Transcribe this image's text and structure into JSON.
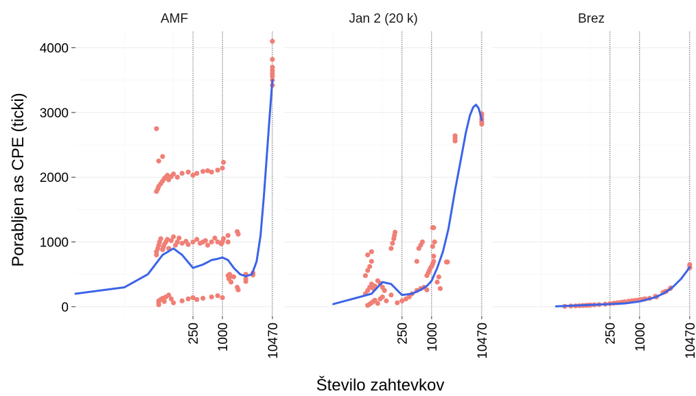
{
  "chart_data": {
    "type": "scatter",
    "xlabel": "Število zahtevkov",
    "ylabel": "Porabljen  as CPE (ticki)",
    "x_scale": "log",
    "x_tick_labels": [
      "250",
      "1000",
      "10470"
    ],
    "x_tick_values": [
      250,
      1000,
      10470
    ],
    "reference_lines_x": [
      250,
      1000,
      10470
    ],
    "ylim": [
      -150,
      4250
    ],
    "y_ticks": [
      0,
      1000,
      2000,
      3000,
      4000
    ],
    "point_color": "#f07f76",
    "line_color": "#3b63e8",
    "grid": true,
    "facets": [
      {
        "label": "AMF",
        "points": [
          [
            50,
            30
          ],
          [
            50,
            60
          ],
          [
            50,
            90
          ],
          [
            55,
            110
          ],
          [
            60,
            130
          ],
          [
            65,
            80
          ],
          [
            70,
            150
          ],
          [
            80,
            180
          ],
          [
            90,
            120
          ],
          [
            100,
            60
          ],
          [
            45,
            800
          ],
          [
            45,
            850
          ],
          [
            48,
            900
          ],
          [
            50,
            950
          ],
          [
            52,
            1000
          ],
          [
            55,
            1050
          ],
          [
            60,
            880
          ],
          [
            62,
            920
          ],
          [
            65,
            960
          ],
          [
            70,
            1000
          ],
          [
            75,
            1040
          ],
          [
            80,
            900
          ],
          [
            90,
            1020
          ],
          [
            100,
            1080
          ],
          [
            110,
            950
          ],
          [
            120,
            1000
          ],
          [
            130,
            1060
          ],
          [
            150,
            980
          ],
          [
            180,
            1010
          ],
          [
            200,
            960
          ],
          [
            250,
            1000
          ],
          [
            300,
            1040
          ],
          [
            350,
            980
          ],
          [
            400,
            1000
          ],
          [
            450,
            1020
          ],
          [
            500,
            950
          ],
          [
            600,
            1000
          ],
          [
            700,
            1060
          ],
          [
            800,
            1000
          ],
          [
            950,
            970
          ],
          [
            1000,
            1000
          ],
          [
            1050,
            1050
          ],
          [
            45,
            1780
          ],
          [
            48,
            1820
          ],
          [
            50,
            1860
          ],
          [
            55,
            1900
          ],
          [
            60,
            1940
          ],
          [
            65,
            1980
          ],
          [
            70,
            2000
          ],
          [
            75,
            2030
          ],
          [
            80,
            1960
          ],
          [
            90,
            2010
          ],
          [
            100,
            2050
          ],
          [
            120,
            2000
          ],
          [
            150,
            2060
          ],
          [
            200,
            2080
          ],
          [
            250,
            2030
          ],
          [
            300,
            2060
          ],
          [
            400,
            2090
          ],
          [
            500,
            2100
          ],
          [
            600,
            2080
          ],
          [
            800,
            2110
          ],
          [
            1000,
            2140
          ],
          [
            1050,
            2230
          ],
          [
            45,
            2750
          ],
          [
            50,
            2250
          ],
          [
            60,
            2320
          ],
          [
            150,
            90
          ],
          [
            200,
            120
          ],
          [
            250,
            140
          ],
          [
            300,
            110
          ],
          [
            400,
            130
          ],
          [
            600,
            150
          ],
          [
            800,
            170
          ],
          [
            1000,
            140
          ],
          [
            1300,
            480
          ],
          [
            1350,
            430
          ],
          [
            1400,
            500
          ],
          [
            1500,
            470
          ],
          [
            1500,
            380
          ],
          [
            1700,
            460
          ],
          [
            2000,
            300
          ],
          [
            2100,
            260
          ],
          [
            1300,
            1100
          ],
          [
            2000,
            1160
          ],
          [
            2100,
            1120
          ],
          [
            1300,
            1000
          ],
          [
            3000,
            500
          ],
          [
            3000,
            430
          ],
          [
            3000,
            390
          ],
          [
            4200,
            520
          ],
          [
            4200,
            490
          ],
          [
            10470,
            3420
          ],
          [
            10470,
            3500
          ],
          [
            10470,
            3560
          ],
          [
            10470,
            3600
          ],
          [
            10470,
            3650
          ],
          [
            10470,
            3700
          ],
          [
            10470,
            3820
          ],
          [
            10470,
            4100
          ]
        ],
        "smooth": [
          [
            1,
            200
          ],
          [
            10,
            300
          ],
          [
            30,
            500
          ],
          [
            60,
            800
          ],
          [
            100,
            900
          ],
          [
            150,
            800
          ],
          [
            250,
            600
          ],
          [
            400,
            650
          ],
          [
            600,
            720
          ],
          [
            800,
            740
          ],
          [
            1000,
            760
          ],
          [
            1300,
            720
          ],
          [
            1700,
            600
          ],
          [
            2300,
            500
          ],
          [
            3000,
            470
          ],
          [
            4000,
            500
          ],
          [
            5000,
            700
          ],
          [
            6000,
            1100
          ],
          [
            7000,
            1700
          ],
          [
            8000,
            2300
          ],
          [
            9000,
            2850
          ],
          [
            10000,
            3300
          ],
          [
            10470,
            3500
          ]
        ]
      },
      {
        "label": "Jan 2 (20 k)",
        "points": [
          [
            50,
            20
          ],
          [
            55,
            40
          ],
          [
            60,
            60
          ],
          [
            65,
            80
          ],
          [
            70,
            100
          ],
          [
            80,
            50
          ],
          [
            90,
            120
          ],
          [
            100,
            150
          ],
          [
            120,
            90
          ],
          [
            150,
            180
          ],
          [
            45,
            200
          ],
          [
            50,
            250
          ],
          [
            55,
            300
          ],
          [
            60,
            350
          ],
          [
            65,
            280
          ],
          [
            70,
            320
          ],
          [
            80,
            400
          ],
          [
            90,
            360
          ],
          [
            100,
            300
          ],
          [
            110,
            250
          ],
          [
            45,
            480
          ],
          [
            50,
            560
          ],
          [
            55,
            620
          ],
          [
            60,
            700
          ],
          [
            50,
            800
          ],
          [
            60,
            850
          ],
          [
            150,
            900
          ],
          [
            160,
            980
          ],
          [
            170,
            1050
          ],
          [
            175,
            1100
          ],
          [
            180,
            1150
          ],
          [
            200,
            60
          ],
          [
            250,
            90
          ],
          [
            300,
            120
          ],
          [
            350,
            150
          ],
          [
            400,
            200
          ],
          [
            500,
            250
          ],
          [
            600,
            280
          ],
          [
            700,
            300
          ],
          [
            800,
            260
          ],
          [
            500,
            700
          ],
          [
            550,
            900
          ],
          [
            600,
            950
          ],
          [
            650,
            1000
          ],
          [
            800,
            480
          ],
          [
            850,
            520
          ],
          [
            900,
            560
          ],
          [
            950,
            600
          ],
          [
            1000,
            620
          ],
          [
            1050,
            660
          ],
          [
            1100,
            700
          ],
          [
            1100,
            780
          ],
          [
            1050,
            930
          ],
          [
            1150,
            1000
          ],
          [
            1050,
            1220
          ],
          [
            1100,
            1220
          ],
          [
            1300,
            380
          ],
          [
            1400,
            460
          ],
          [
            1500,
            280
          ],
          [
            2000,
            690
          ],
          [
            2100,
            690
          ],
          [
            3000,
            2560
          ],
          [
            3000,
            2600
          ],
          [
            3000,
            2640
          ],
          [
            10470,
            2820
          ],
          [
            10470,
            2860
          ],
          [
            10470,
            2900
          ],
          [
            10470,
            2950
          ],
          [
            10470,
            2980
          ]
        ],
        "smooth": [
          [
            10,
            40
          ],
          [
            60,
            200
          ],
          [
            100,
            380
          ],
          [
            150,
            350
          ],
          [
            250,
            180
          ],
          [
            400,
            200
          ],
          [
            600,
            260
          ],
          [
            800,
            320
          ],
          [
            1000,
            400
          ],
          [
            1300,
            600
          ],
          [
            1700,
            850
          ],
          [
            2200,
            1200
          ],
          [
            3000,
            1800
          ],
          [
            4000,
            2300
          ],
          [
            5000,
            2700
          ],
          [
            6000,
            2950
          ],
          [
            7000,
            3080
          ],
          [
            8000,
            3120
          ],
          [
            9000,
            3070
          ],
          [
            10000,
            2950
          ],
          [
            10470,
            2880
          ]
        ]
      },
      {
        "label": "Brez",
        "points": [
          [
            30,
            5
          ],
          [
            40,
            10
          ],
          [
            50,
            12
          ],
          [
            60,
            15
          ],
          [
            70,
            18
          ],
          [
            80,
            20
          ],
          [
            90,
            22
          ],
          [
            100,
            25
          ],
          [
            120,
            28
          ],
          [
            150,
            32
          ],
          [
            200,
            40
          ],
          [
            250,
            48
          ],
          [
            300,
            55
          ],
          [
            350,
            60
          ],
          [
            400,
            65
          ],
          [
            450,
            70
          ],
          [
            500,
            75
          ],
          [
            600,
            85
          ],
          [
            700,
            90
          ],
          [
            800,
            95
          ],
          [
            900,
            100
          ],
          [
            1000,
            105
          ],
          [
            1100,
            110
          ],
          [
            1200,
            115
          ],
          [
            1300,
            120
          ],
          [
            1600,
            130
          ],
          [
            2100,
            160
          ],
          [
            2200,
            150
          ],
          [
            3000,
            220
          ],
          [
            3300,
            230
          ],
          [
            3500,
            240
          ],
          [
            4200,
            280
          ],
          [
            4300,
            290
          ],
          [
            10470,
            600
          ],
          [
            10470,
            630
          ],
          [
            10470,
            650
          ]
        ],
        "smooth": [
          [
            20,
            5
          ],
          [
            500,
            50
          ],
          [
            1000,
            80
          ],
          [
            2000,
            140
          ],
          [
            3000,
            200
          ],
          [
            4000,
            260
          ],
          [
            5000,
            320
          ],
          [
            6000,
            380
          ],
          [
            7000,
            430
          ],
          [
            8000,
            490
          ],
          [
            9000,
            540
          ],
          [
            10000,
            590
          ],
          [
            10470,
            610
          ]
        ]
      }
    ]
  }
}
